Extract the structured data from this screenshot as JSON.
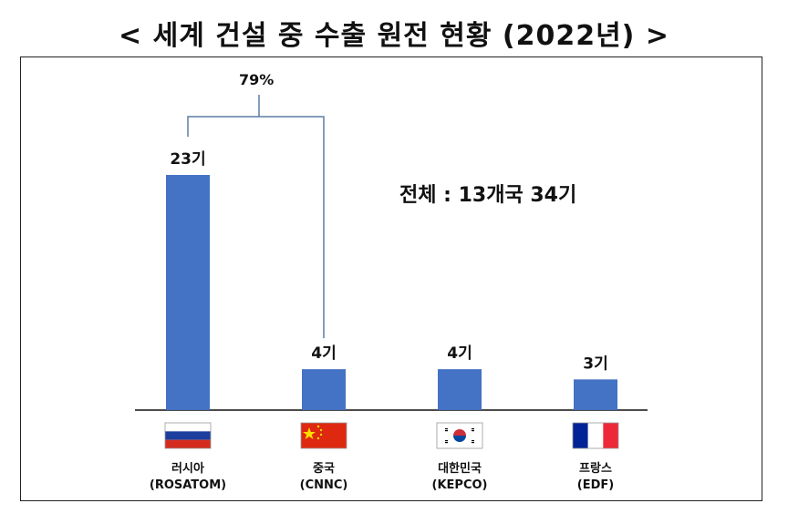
{
  "title": "< 세계 건설 중 수출 원전 현황 (2022년) >",
  "annotation_total": "전체 : 13개국 34기",
  "annotation_share": "79%",
  "colors": {
    "bar": "#4472C4",
    "bracket": "#5B7FA6",
    "axis": "#111111"
  },
  "chart_data": {
    "type": "bar",
    "categories": [
      "러시아 (ROSATOM)",
      "중국 (CNNC)",
      "대한민국 (KEPCO)",
      "프랑스 (EDF)"
    ],
    "values": [
      23,
      4,
      4,
      3
    ],
    "value_labels": [
      "23기",
      "4기",
      "4기",
      "3기"
    ],
    "country_names": [
      "러시아",
      "중국",
      "대한민국",
      "프랑스"
    ],
    "companies": [
      "(ROSATOM)",
      "(CNNC)",
      "(KEPCO)",
      "(EDF)"
    ],
    "flags": [
      "russia-flag-icon",
      "china-flag-icon",
      "south-korea-flag-icon",
      "france-flag-icon"
    ],
    "ylim": [
      0,
      23
    ],
    "grid": false,
    "legend": "none"
  }
}
